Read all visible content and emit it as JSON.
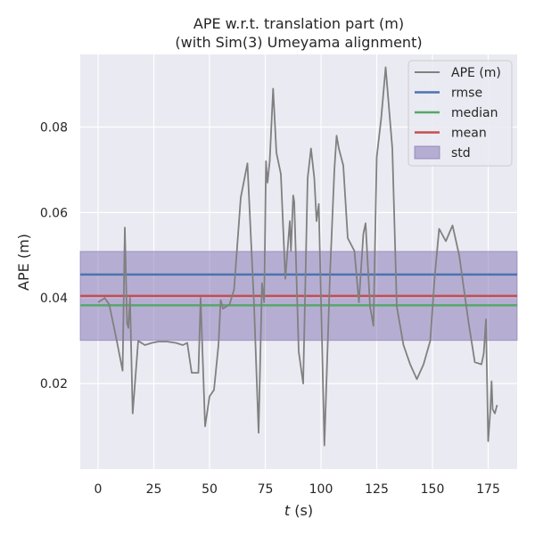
{
  "chart_data": {
    "type": "line",
    "title": "APE w.r.t. translation part (m)",
    "subtitle": "(with Sim(3) Umeyama alignment)",
    "xlabel_italic": "t",
    "xlabel_unit": " (s)",
    "ylabel": "APE (m)",
    "xlim": [
      -8,
      188
    ],
    "ylim": [
      0.0,
      0.097
    ],
    "xticks": [
      0,
      25,
      50,
      75,
      100,
      125,
      150,
      175
    ],
    "yticks": [
      0.02,
      0.04,
      0.06,
      0.08
    ],
    "ytick_labels": [
      "0.02",
      "0.04",
      "0.06",
      "0.08"
    ],
    "grid": true,
    "legend_position": "top-right",
    "legend": [
      {
        "label": "APE (m)",
        "type": "line",
        "color": "#808080"
      },
      {
        "label": "rmse",
        "type": "line",
        "color": "#4c72b0"
      },
      {
        "label": "median",
        "type": "line",
        "color": "#55a868"
      },
      {
        "label": "mean",
        "type": "line",
        "color": "#c44e52"
      },
      {
        "label": "std",
        "type": "patch",
        "color": "#8172b2"
      }
    ],
    "stats": {
      "rmse": 0.0455,
      "median": 0.0383,
      "mean": 0.0405,
      "std": 0.0104
    },
    "series": [
      {
        "name": "APE (m)",
        "color": "#808080",
        "x": [
          0,
          3,
          5,
          8,
          11,
          12,
          13,
          13.6,
          14.3,
          15.5,
          18,
          21,
          24,
          27,
          31,
          35,
          38,
          40,
          42,
          45,
          46,
          48,
          50,
          52,
          54,
          55,
          56,
          59,
          61,
          64,
          67,
          70,
          72,
          73.5,
          74.5,
          75.3,
          76,
          77,
          78.5,
          80,
          82,
          84,
          86,
          86.5,
          87.5,
          88,
          90,
          92,
          94,
          95.5,
          97,
          98,
          99,
          101.5,
          104,
          106,
          107,
          108,
          110,
          112,
          115,
          117,
          119,
          120,
          122,
          123.5,
          125,
          127,
          129,
          132,
          134,
          137,
          140,
          143,
          146,
          149,
          151,
          153,
          156,
          159,
          162,
          166,
          169,
          172,
          173,
          174,
          175,
          176,
          176.5,
          177,
          178,
          179
        ],
        "y": [
          0.039,
          0.04,
          0.0385,
          0.031,
          0.023,
          0.0565,
          0.034,
          0.033,
          0.04,
          0.013,
          0.03,
          0.029,
          0.0295,
          0.0298,
          0.0298,
          0.0295,
          0.029,
          0.0295,
          0.0225,
          0.0225,
          0.04,
          0.01,
          0.017,
          0.0185,
          0.029,
          0.0395,
          0.0375,
          0.0385,
          0.042,
          0.0635,
          0.0715,
          0.038,
          0.0085,
          0.0435,
          0.039,
          0.072,
          0.067,
          0.072,
          0.089,
          0.074,
          0.069,
          0.0445,
          0.058,
          0.051,
          0.064,
          0.0625,
          0.0275,
          0.02,
          0.068,
          0.075,
          0.068,
          0.058,
          0.062,
          0.0055,
          0.045,
          0.07,
          0.078,
          0.075,
          0.071,
          0.054,
          0.051,
          0.039,
          0.055,
          0.0575,
          0.038,
          0.0335,
          0.073,
          0.082,
          0.094,
          0.075,
          0.038,
          0.029,
          0.0245,
          0.021,
          0.0245,
          0.03,
          0.045,
          0.0562,
          0.0533,
          0.057,
          0.05,
          0.035,
          0.025,
          0.0245,
          0.027,
          0.035,
          0.0065,
          0.014,
          0.0205,
          0.014,
          0.013,
          0.015
        ]
      }
    ]
  }
}
